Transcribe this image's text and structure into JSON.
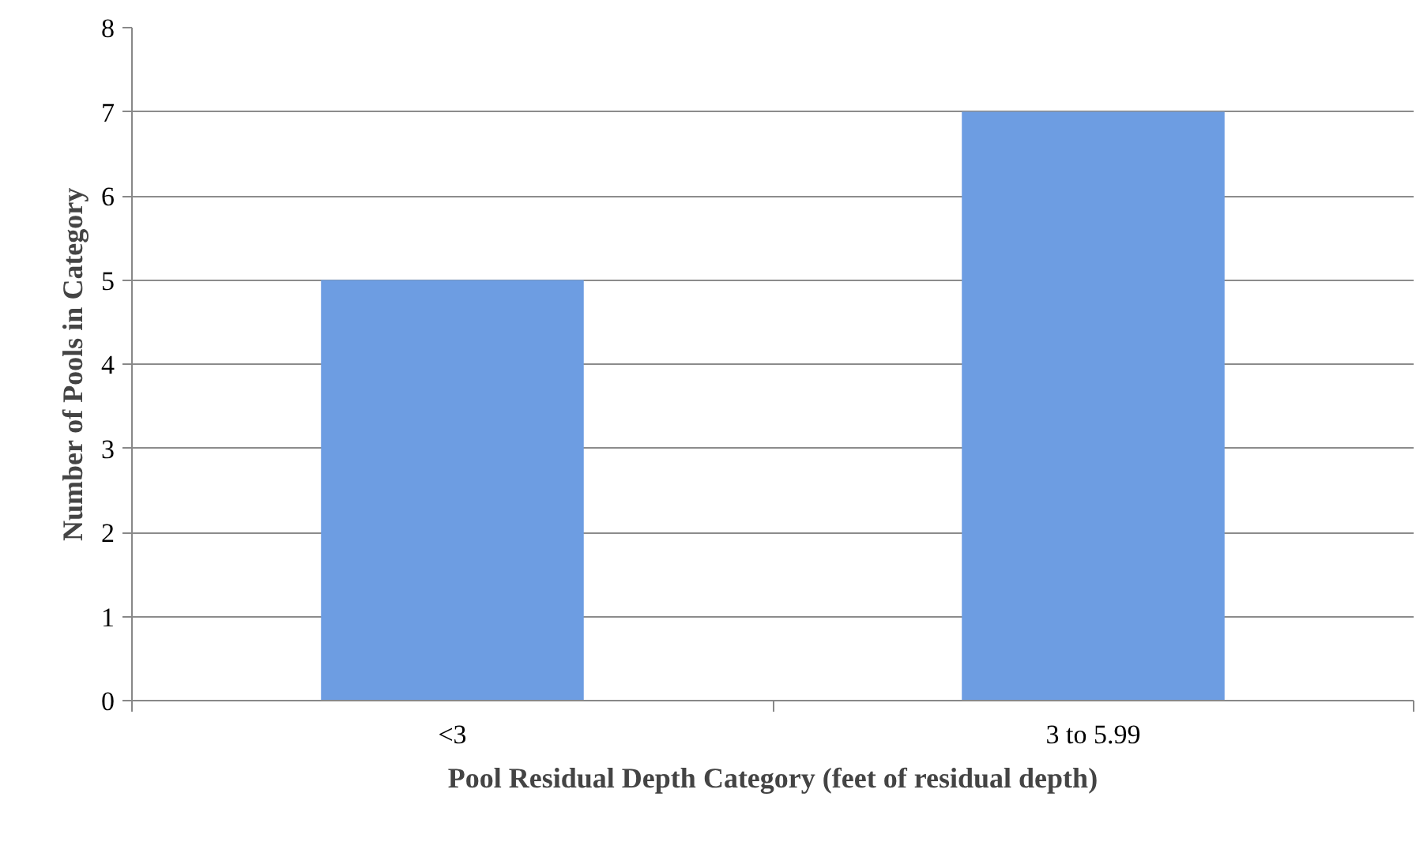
{
  "chart_data": {
    "type": "bar",
    "xlabel": "Pool Residual Depth Category (feet of residual depth)",
    "ylabel": "Number of Pools in Category",
    "categories": [
      "<3",
      "3 to 5.99"
    ],
    "values": [
      5,
      7
    ],
    "color": "#6d9de2",
    "ylim": [
      0,
      8
    ],
    "yticks": [
      0,
      1,
      2,
      3,
      4,
      5,
      6,
      7,
      8
    ],
    "grid": "y"
  }
}
